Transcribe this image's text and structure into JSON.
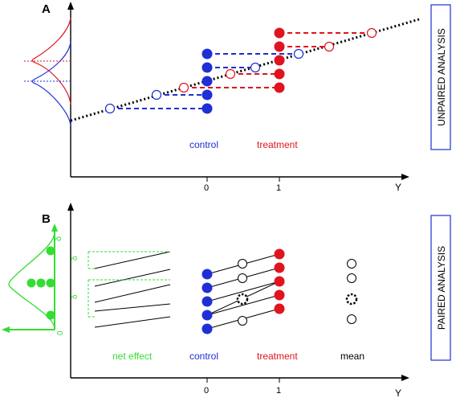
{
  "panel_a": {
    "label": "A",
    "side_label": "UNPAIRED ANALYSIS",
    "group_control": "control",
    "group_treatment": "treatment",
    "tick_0": "0",
    "tick_1": "1",
    "axis_y": "Y"
  },
  "panel_b": {
    "label": "B",
    "side_label": "PAIRED ANALYSIS",
    "group_net": "net effect",
    "group_control": "control",
    "group_treatment": "treatment",
    "group_mean": "mean",
    "tick_0": "0",
    "tick_1": "1",
    "axis_y": "Y",
    "delta": "δ",
    "zero": "0"
  },
  "colors": {
    "control": "#1f2fd6",
    "treatment": "#e0141e",
    "net": "#33dd33",
    "text": "#000000"
  }
}
